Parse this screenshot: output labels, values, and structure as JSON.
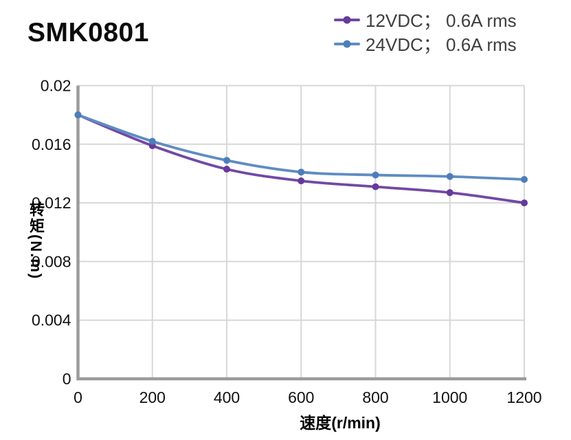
{
  "title": "SMK0801",
  "legend": {
    "items": [
      {
        "label": "12VDC； 0.6A rms"
      },
      {
        "label": "24VDC； 0.6A rms"
      }
    ]
  },
  "chart_data": {
    "type": "line",
    "x": [
      0,
      200,
      400,
      600,
      800,
      1000,
      1200
    ],
    "series": [
      {
        "name": "12VDC； 0.6A rms",
        "color": "#7348A5",
        "marker_color": "#653A9B",
        "values": [
          0.018,
          0.0159,
          0.0143,
          0.0135,
          0.0131,
          0.0127,
          0.012
        ]
      },
      {
        "name": "24VDC； 0.6A rms",
        "color": "#5E8CC2",
        "marker_color": "#4C7EB9",
        "values": [
          0.018,
          0.0162,
          0.0149,
          0.0141,
          0.0139,
          0.0138,
          0.0136
        ]
      }
    ],
    "xlabel": "速度(r/min)",
    "ylabel": "转矩(N.m)",
    "xlim": [
      0,
      1200
    ],
    "ylim": [
      0,
      0.02
    ],
    "x_ticks": [
      0,
      200,
      400,
      600,
      800,
      1000,
      1200
    ],
    "x_tick_labels": [
      "0",
      "200",
      "400",
      "600",
      "800",
      "1000",
      "1200"
    ],
    "y_ticks": [
      0,
      0.004,
      0.008,
      0.012,
      0.016,
      0.02
    ],
    "y_tick_labels": [
      "0",
      "0.004",
      "0.008",
      "0.012",
      "0.016",
      "0.02"
    ],
    "grid": true,
    "legend_position": "top-right",
    "grid_color": "#d7d7d7",
    "axis_color": "#9b9b9b",
    "tick_label_color": "#111111"
  }
}
